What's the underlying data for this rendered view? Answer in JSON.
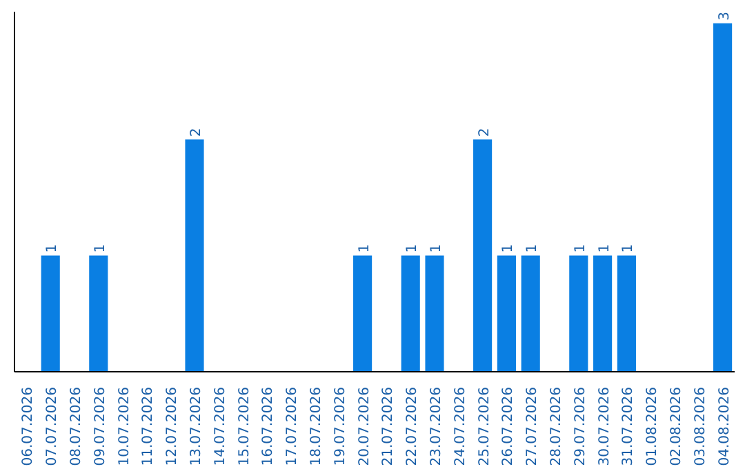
{
  "chart_data": {
    "type": "bar",
    "categories": [
      "06.07.2026",
      "07.07.2026",
      "08.07.2026",
      "09.07.2026",
      "10.07.2026",
      "11.07.2026",
      "12.07.2026",
      "13.07.2026",
      "14.07.2026",
      "15.07.2026",
      "16.07.2026",
      "17.07.2026",
      "18.07.2026",
      "19.07.2026",
      "20.07.2026",
      "21.07.2026",
      "22.07.2026",
      "23.07.2026",
      "24.07.2026",
      "25.07.2026",
      "26.07.2026",
      "27.07.2026",
      "28.07.2026",
      "29.07.2026",
      "30.07.2026",
      "31.07.2026",
      "01.08.2026",
      "02.08.2026",
      "03.08.2026",
      "04.08.2026"
    ],
    "values": [
      0,
      1,
      0,
      1,
      0,
      0,
      0,
      2,
      0,
      0,
      0,
      0,
      0,
      0,
      1,
      0,
      1,
      1,
      0,
      2,
      1,
      1,
      0,
      1,
      1,
      1,
      0,
      0,
      0,
      3
    ],
    "value_labels": [
      null,
      "1",
      null,
      "1",
      null,
      null,
      null,
      "2",
      null,
      null,
      null,
      null,
      null,
      null,
      "1",
      null,
      "1",
      "1",
      null,
      "2",
      "1",
      "1",
      null,
      "1",
      "1",
      "1",
      null,
      null,
      null,
      "3"
    ],
    "color": "#0a7fe3",
    "ylim": [
      0,
      3.1
    ],
    "tick_labels": "x",
    "grid": false
  }
}
